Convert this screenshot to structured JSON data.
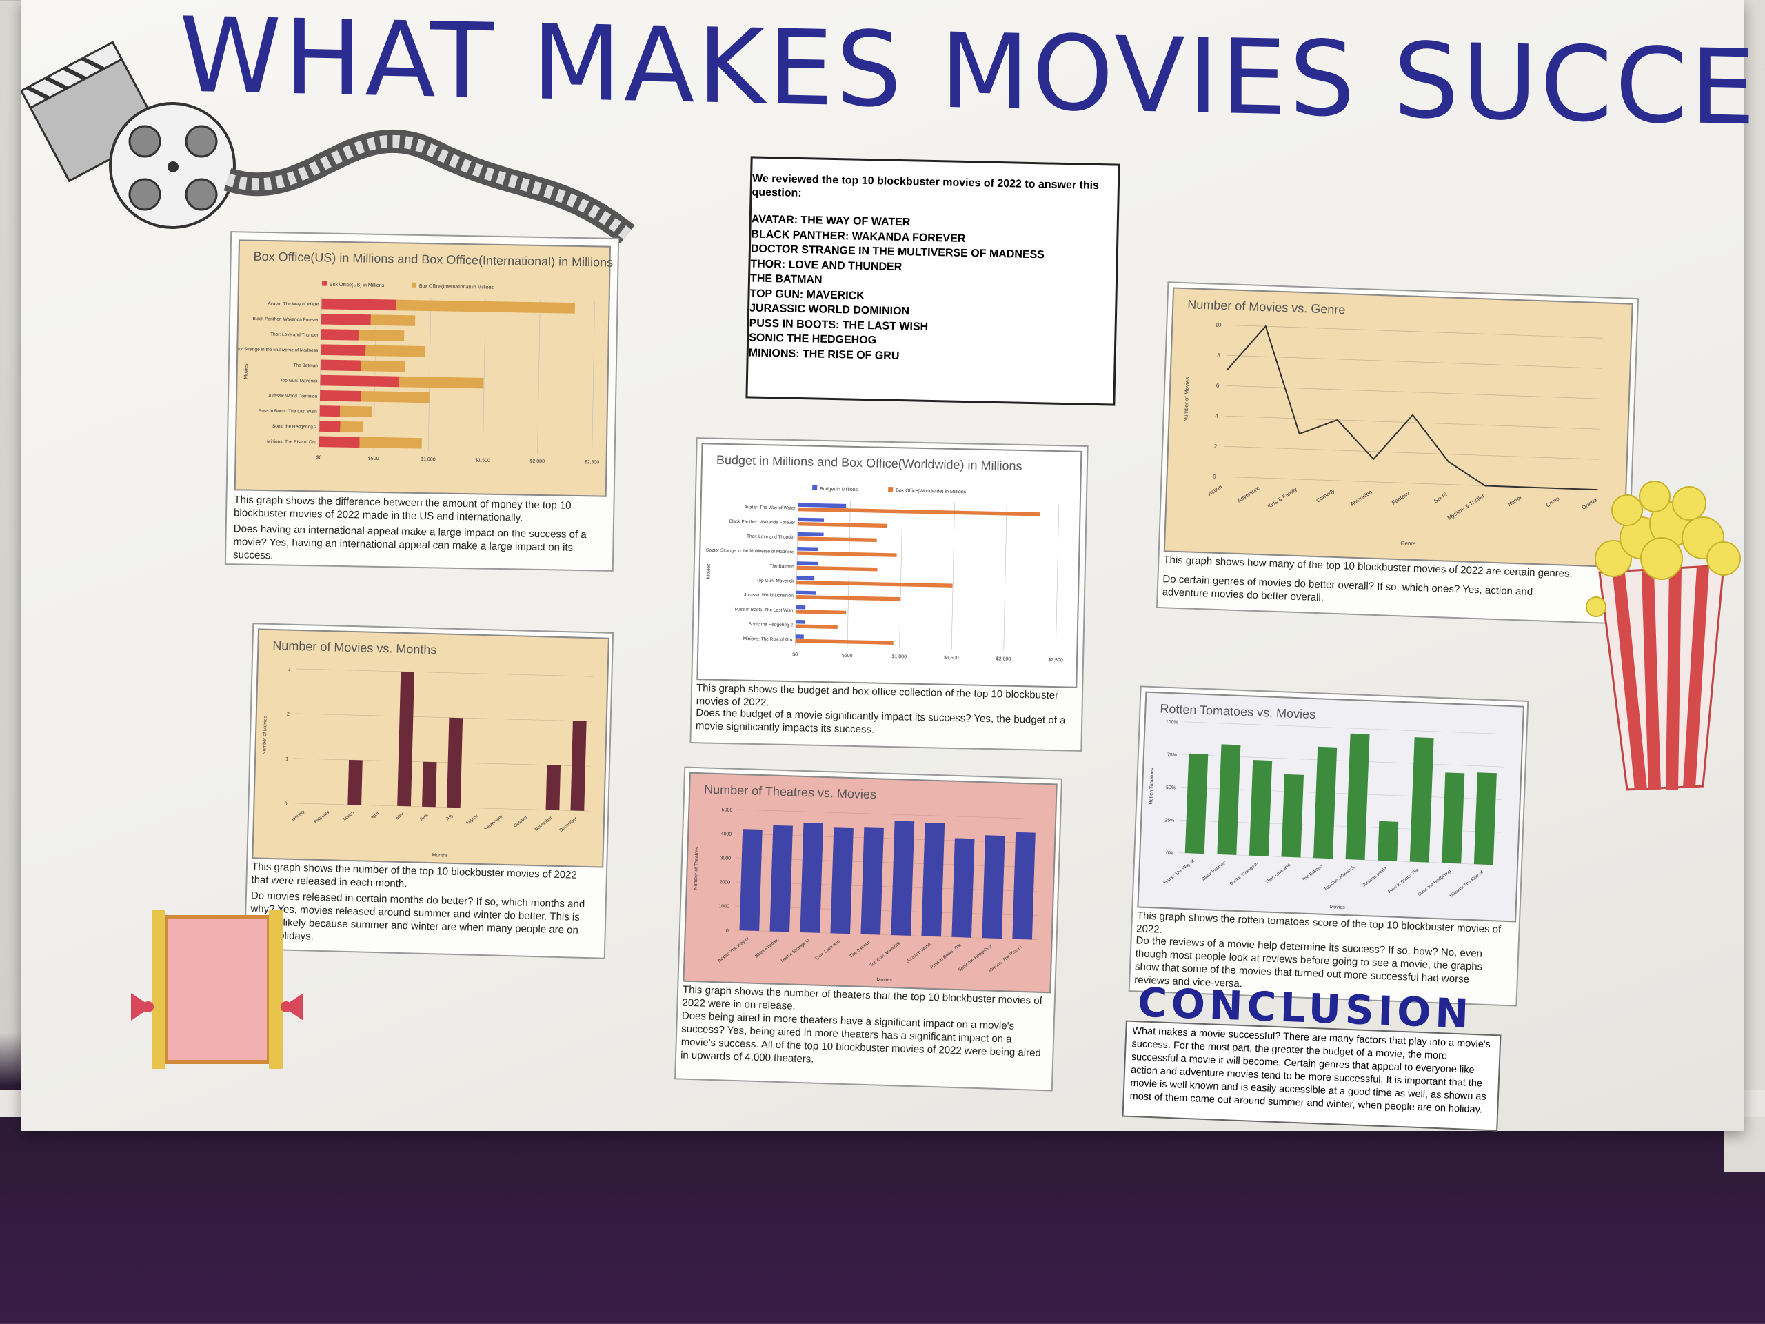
{
  "title": "WHAT MAKES MOVIES SUCCESSFUL ?",
  "intro": {
    "lead": "We reviewed the top 10 blockbuster movies of 2022 to answer this question:",
    "movies": [
      "AVATAR: THE WAY OF WATER",
      "BLACK PANTHER: WAKANDA FOREVER",
      "DOCTOR STRANGE IN THE MULTIVERSE OF MADNESS",
      "THOR: LOVE AND THUNDER",
      "THE BATMAN",
      "TOP GUN: MAVERICK",
      "JURASSIC WORLD DOMINION",
      "PUSS IN BOOTS: THE LAST WISH",
      "SONIC THE HEDGEHOG",
      "MINIONS: THE RISE OF GRU"
    ]
  },
  "conclusion": {
    "heading": "CONCLUSION",
    "text": "What makes a movie successful? There are many factors that play into a movie's success. For the most part, the greater the budget of a movie, the more successful a movie it will become. Certain genres that appeal to everyone like action and adventure movies tend to be more successful. It is important that the movie is well known and is easily accessible at a good time as well, as shown as most of them came out around summer and winter, when people are on holiday."
  },
  "colors": {
    "title": "#2b2c8f",
    "us": "#d9434a",
    "intl": "#e0a84e",
    "budget": "#4c5fcf",
    "worldwide": "#e27b3b",
    "purple_bar": "#6b2a3a",
    "theatre_bar": "#3f45a8",
    "green_bar": "#3d8b3d"
  },
  "chart_data": [
    {
      "type": "bar",
      "orientation": "horizontal",
      "title": "Box Office(US) in Millions and Box Office(International) in Millions",
      "ylabel": "Movies",
      "categories": [
        "Avatar: The Way of Water",
        "Black Panther: Wakanda Forever",
        "Thor: Love and Thunder",
        "Doctor Strange in the Multiverse of Madness",
        "The Batman",
        "Top Gun: Maverick",
        "Jurassic World Dominion",
        "Puss in Boots: The Last Wish",
        "Sonic the Hedgehog 2",
        "Minions: The Rise of Gru"
      ],
      "series": [
        {
          "name": "Box Office(US) in Millions",
          "values": [
            684,
            453,
            343,
            411,
            369,
            719,
            376,
            186,
            190,
            370
          ]
        },
        {
          "name": "Box Office(International) in Millions",
          "values": [
            1636,
            406,
            418,
            544,
            403,
            777,
            626,
            295,
            212,
            570
          ]
        }
      ],
      "stacked": true,
      "ticks": [
        "$0",
        "$500",
        "$1,000",
        "$1,500",
        "$2,000",
        "$2,500"
      ],
      "xlim": [
        0,
        2500
      ],
      "caption": "This graph shows the difference between the amount of money the top 10 blockbuster movies of 2022 made in the US and internationally.",
      "qa": "Does having an international appeal make a large impact on the success of a movie? Yes, having an international appeal can make a large impact on its success."
    },
    {
      "type": "bar",
      "orientation": "horizontal",
      "title": "Budget in Millions and Box Office(Worldwide) in Millions",
      "ylabel": "Movies",
      "categories": [
        "Avatar: The Way of Water",
        "Black Panther: Wakanda Forever",
        "Thor: Love and Thunder",
        "Doctor Strange in the Multiverse of Madness",
        "The Batman",
        "Top Gun: Maverick",
        "Jurassic World Dominion",
        "Puss in Boots: The Last Wish",
        "Sonic the Hedgehog 2",
        "Minions: The Rise of Gru"
      ],
      "series": [
        {
          "name": "Budget in Millions",
          "values": [
            460,
            250,
            250,
            200,
            200,
            170,
            185,
            90,
            90,
            80
          ]
        },
        {
          "name": "Box Office(Worldwide) in Millions",
          "values": [
            2320,
            859,
            761,
            955,
            772,
            1496,
            1002,
            481,
            402,
            940
          ]
        }
      ],
      "ticks": [
        "$0",
        "$500",
        "$1,000",
        "$1,500",
        "$2,000",
        "$2,500"
      ],
      "xlim": [
        0,
        2500
      ],
      "caption": "This graph shows the budget and box office collection of the top 10 blockbuster movies of 2022.",
      "qa": "Does the budget of a movie significantly impact its success? Yes, the budget of a movie significantly impacts its success."
    },
    {
      "type": "line",
      "title": "Number of Movies  vs. Genre",
      "xlabel": "Genre",
      "ylabel": "Number of Movies",
      "categories": [
        "Action",
        "Adventure",
        "Kids & Family",
        "Comedy",
        "Animation",
        "Fantasy",
        "Sci-Fi",
        "Mystery & Thriller",
        "Horror",
        "Crime",
        "Drama"
      ],
      "values": [
        7,
        10,
        3,
        4,
        1.5,
        4.5,
        1.5,
        0,
        0,
        0,
        0
      ],
      "ticks": [
        "0",
        "2",
        "4",
        "6",
        "8",
        "10"
      ],
      "ylim": [
        0,
        10
      ],
      "caption": "This graph shows how many of the top 10 blockbuster movies of 2022 are certain genres.",
      "qa": "Do certain genres of movies do better overall? If so, which ones? Yes, action and adventure movies do better overall."
    },
    {
      "type": "bar",
      "title": "Number of Movies vs. Months",
      "xlabel": "Months",
      "ylabel": "Number of Movies",
      "categories": [
        "January",
        "February",
        "March",
        "April",
        "May",
        "June",
        "July",
        "August",
        "September",
        "October",
        "November",
        "December"
      ],
      "values": [
        0,
        0,
        1,
        0,
        3,
        1,
        2,
        0,
        0,
        0,
        1,
        2
      ],
      "ticks": [
        "0",
        "1",
        "2",
        "3"
      ],
      "ylim": [
        0,
        3
      ],
      "caption": "This graph shows the number of the top 10 blockbuster movies of 2022 that were released in each month.",
      "qa": "Do movies released in certain months do better? If so, which months and why? Yes, movies released around summer and winter do better. This is mostly likely because summer and winter are when many people are on their holidays."
    },
    {
      "type": "bar",
      "title": "Number of Theatres  vs. Movies",
      "xlabel": "Movies",
      "ylabel": "Number of Theatres",
      "categories": [
        "Avatar: The Way of",
        "Black Panther:",
        "Doctor Strange in",
        "Thor: Love and",
        "The Batman",
        "Top Gun: Maverick",
        "Jurassic World",
        "Puss in Boots: The",
        "Sonic the Hedgehog",
        "Minions: The Rise of"
      ],
      "values": [
        4202,
        4396,
        4534,
        4375,
        4417,
        4735,
        4697,
        4100,
        4258,
        4427
      ],
      "ticks": [
        "0",
        "1000",
        "2000",
        "3000",
        "4000",
        "5000"
      ],
      "ylim": [
        0,
        5000
      ],
      "caption": "This graph shows the number of theaters that the top 10 blockbuster movies of 2022 were in on release.",
      "qa": "Does being aired in more theaters have a significant impact on a movie's success? Yes, being aired in more theaters has a significant impact on a movie's success. All of the top 10 blockbuster movies of 2022 were being aired in upwards of 4,000 theaters."
    },
    {
      "type": "bar",
      "title": "Rotten Tomatoes vs. Movies",
      "xlabel": "Movies",
      "ylabel": "Rotten Tomatoes",
      "categories": [
        "Avatar: The Way of",
        "Black Panther:",
        "Doctor Strange in",
        "Thor: Love and",
        "The Batman",
        "Top Gun: Maverick",
        "Jurassic World",
        "Puss in Boots: The",
        "Sonic the Hedgehog",
        "Minions: The Rise of"
      ],
      "values": [
        76,
        84,
        73,
        63,
        85,
        96,
        30,
        95,
        69,
        70
      ],
      "ticks": [
        "0%",
        "25%",
        "50%",
        "75%",
        "100%"
      ],
      "ylim": [
        0,
        100
      ],
      "caption": "This graph shows the rotten tomatoes score of the top 10 blockbuster movies of 2022.",
      "qa": "Do the reviews of a movie help determine its success? If so, how? No, even though most people look at reviews before going to see a movie, the graphs show that some of the movies that turned out more successful had worse reviews and vice-versa."
    }
  ]
}
